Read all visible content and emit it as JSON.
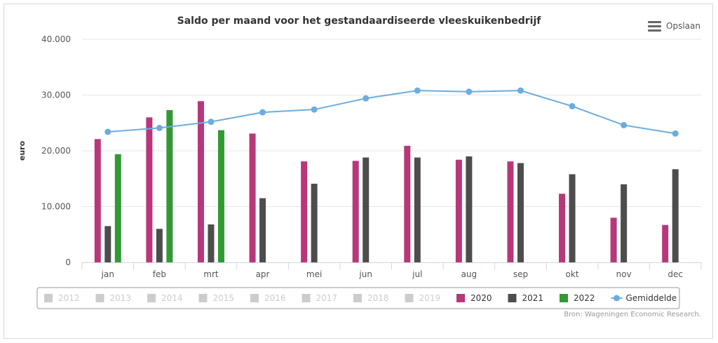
{
  "toolbar": {
    "save_label": "Opslaan",
    "menu_icon": "hamburger-menu-icon"
  },
  "credit": "Bron: Wageningen Economic Research.",
  "colors": {
    "2020": "#b8377a",
    "2021": "#4d4d4d",
    "2022": "#339933",
    "average": "#6baddf",
    "inactive": "#cccccc",
    "grid": "#e6e6e6"
  },
  "chart_data": {
    "type": "bar",
    "title": "Saldo per maand voor het gestandaardiseerde vleeskuikenbedrijf",
    "xlabel": "",
    "ylabel": "euro",
    "ylim": [
      0,
      40000
    ],
    "yticks": [
      "0",
      "10.000",
      "20.000",
      "30.000",
      "40.000"
    ],
    "ytick_values": [
      0,
      10000,
      20000,
      30000,
      40000
    ],
    "grid": true,
    "legend_position": "bottom",
    "categories": [
      "jan",
      "feb",
      "mrt",
      "apr",
      "mei",
      "jun",
      "jul",
      "aug",
      "sep",
      "okt",
      "nov",
      "dec"
    ],
    "series": [
      {
        "name": "2020",
        "type": "bar",
        "color": "#b8377a",
        "values": [
          22100,
          26000,
          28900,
          23100,
          18100,
          18200,
          20900,
          18400,
          18100,
          12300,
          8000,
          6700
        ]
      },
      {
        "name": "2021",
        "type": "bar",
        "color": "#4d4d4d",
        "values": [
          6500,
          6000,
          6800,
          11500,
          14100,
          18800,
          18800,
          19000,
          17800,
          15800,
          14000,
          16700
        ]
      },
      {
        "name": "2022",
        "type": "bar",
        "color": "#339933",
        "values": [
          19400,
          27300,
          23700,
          null,
          null,
          null,
          null,
          null,
          null,
          null,
          null,
          null
        ]
      },
      {
        "name": "Gemiddelde",
        "type": "line",
        "color": "#6baddf",
        "values": [
          23400,
          24100,
          25200,
          26900,
          27400,
          29400,
          30800,
          30600,
          30800,
          28000,
          24600,
          23100
        ]
      }
    ],
    "legend": [
      {
        "name": "2012",
        "active": false,
        "symbol": "square"
      },
      {
        "name": "2013",
        "active": false,
        "symbol": "square"
      },
      {
        "name": "2014",
        "active": false,
        "symbol": "square"
      },
      {
        "name": "2015",
        "active": false,
        "symbol": "square"
      },
      {
        "name": "2016",
        "active": false,
        "symbol": "square"
      },
      {
        "name": "2017",
        "active": false,
        "symbol": "square"
      },
      {
        "name": "2018",
        "active": false,
        "symbol": "square"
      },
      {
        "name": "2019",
        "active": false,
        "symbol": "square"
      },
      {
        "name": "2020",
        "active": true,
        "symbol": "square",
        "color": "#b8377a"
      },
      {
        "name": "2021",
        "active": true,
        "symbol": "square",
        "color": "#4d4d4d"
      },
      {
        "name": "2022",
        "active": true,
        "symbol": "square",
        "color": "#339933"
      },
      {
        "name": "Gemiddelde",
        "active": true,
        "symbol": "line-marker",
        "color": "#6baddf"
      }
    ]
  }
}
